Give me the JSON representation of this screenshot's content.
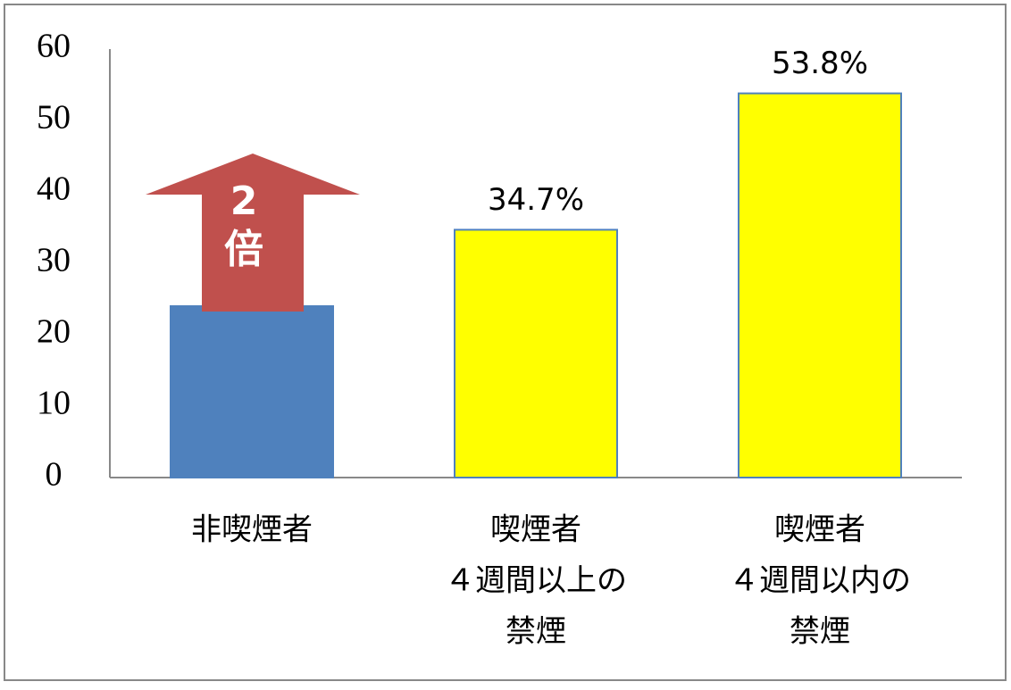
{
  "chart_data": {
    "type": "bar",
    "categories": [
      [
        "非喫煙者"
      ],
      [
        "喫煙者",
        "４週間以上の",
        "禁煙"
      ],
      [
        "喫煙者",
        "４週間以内の",
        "禁煙"
      ]
    ],
    "values": [
      24,
      34.7,
      53.8
    ],
    "value_labels": [
      null,
      "34.7%",
      "53.8%"
    ],
    "colors": [
      "#4f81bd",
      "#ffff00",
      "#ffff00"
    ],
    "ylim": [
      0,
      60
    ],
    "yticks": [
      0,
      10,
      20,
      30,
      40,
      50,
      60
    ],
    "grid": false,
    "annotation": [
      "2",
      "倍"
    ]
  }
}
